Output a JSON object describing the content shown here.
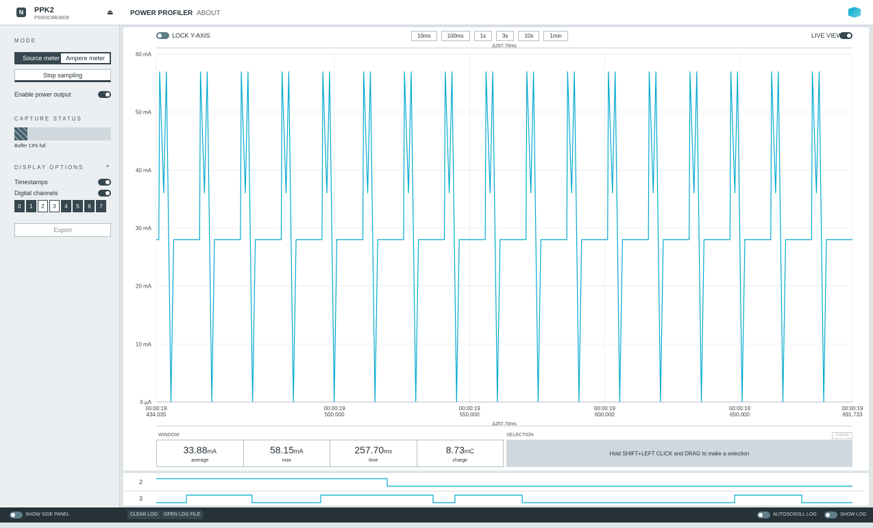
{
  "header": {
    "device": "PPK2",
    "serial": "F5583CBB38DE",
    "nav": [
      "POWER PROFILER",
      "ABOUT"
    ]
  },
  "sidebar": {
    "mode_title": "MODE",
    "mode_buttons": [
      "Source meter",
      "Ampere meter"
    ],
    "stop": "Stop sampling",
    "power_output": "Enable power output",
    "capture_title": "CAPTURE STATUS",
    "buffer": "Buffer 13% full",
    "display_title": "DISPLAY OPTIONS",
    "timestamps": "Timestamps",
    "digital_channels": "Digital channels",
    "channels": [
      {
        "label": "0",
        "on": false
      },
      {
        "label": "1",
        "on": false
      },
      {
        "label": "2",
        "on": true
      },
      {
        "label": "3",
        "on": true
      },
      {
        "label": "4",
        "on": false
      },
      {
        "label": "5",
        "on": false
      },
      {
        "label": "6",
        "on": false
      },
      {
        "label": "7",
        "on": false
      }
    ],
    "export": "Export",
    "show_side_panel": "SHOW SIDE PANEL"
  },
  "toolbar": {
    "lock": "LOCK Y-AXIS",
    "windows": [
      "10ms",
      "100ms",
      "1s",
      "3s",
      "10s",
      "1min"
    ],
    "live": "LIVE VIEW",
    "delta": "Δ257.70ms"
  },
  "chart_data": {
    "type": "line",
    "color": "#00a9ce",
    "grid": true,
    "xlim": [
      434.035,
      691.733
    ],
    "ylim": [
      0,
      60
    ],
    "xticks": [
      {
        "value": 434.035,
        "label": "434.035",
        "time": "00:00:19"
      },
      {
        "value": 500,
        "label": "500.000",
        "time": "00:00:19"
      },
      {
        "value": 550,
        "label": "550.000",
        "time": "00:00:19"
      },
      {
        "value": 600,
        "label": "600.000",
        "time": "00:00:19"
      },
      {
        "value": 650,
        "label": "650.000",
        "time": "00:00:19"
      },
      {
        "value": 691.733,
        "label": "691.733",
        "time": "00:00:19"
      }
    ],
    "yticks": [
      {
        "value": 0,
        "label": "0 µA"
      },
      {
        "value": 10,
        "label": "10 mA"
      },
      {
        "value": 20,
        "label": "20 mA"
      },
      {
        "value": 30,
        "label": "30 mA"
      },
      {
        "value": 40,
        "label": "40 mA"
      },
      {
        "value": 50,
        "label": "50 mA"
      },
      {
        "value": 60,
        "label": "60 mA"
      }
    ],
    "x": [
      434.035,
      435.0,
      435.3,
      436.8,
      437.8,
      439.5,
      440.5,
      450.1,
      450.4,
      451.9,
      452.9,
      454.6,
      455.6,
      465.2,
      465.5,
      467.0,
      468.0,
      469.7,
      470.7,
      480.3,
      480.6,
      482.1,
      483.1,
      484.8,
      485.8,
      495.4,
      495.7,
      497.2,
      498.2,
      499.9,
      500.9,
      510.5,
      510.8,
      512.3,
      513.3,
      515.0,
      516.0,
      525.6,
      525.9,
      527.4,
      528.4,
      530.1,
      531.1,
      540.7,
      541.0,
      542.5,
      543.5,
      545.2,
      546.2,
      555.8,
      556.1,
      557.6,
      558.6,
      560.3,
      561.3,
      570.9,
      571.2,
      572.7,
      573.7,
      575.4,
      576.4,
      586.0,
      586.3,
      587.8,
      588.8,
      590.5,
      591.5,
      601.1,
      601.4,
      602.9,
      603.9,
      605.6,
      606.6,
      616.2,
      616.5,
      618.0,
      619.0,
      620.7,
      621.7,
      631.3,
      631.6,
      633.1,
      634.1,
      635.8,
      636.8,
      646.4,
      646.7,
      648.2,
      649.2,
      650.9,
      651.9,
      661.5,
      661.8,
      663.3,
      664.3,
      666.0,
      667.0,
      676.6,
      676.9,
      678.4,
      679.4,
      681.1,
      682.1,
      691.733
    ],
    "values": [
      28,
      28,
      57,
      36,
      57,
      0,
      28,
      28,
      57,
      36,
      57,
      0,
      28,
      28,
      57,
      36,
      57,
      0,
      28,
      28,
      57,
      36,
      57,
      0,
      28,
      28,
      57,
      36,
      57,
      0,
      28,
      28,
      57,
      36,
      57,
      0,
      28,
      28,
      57,
      36,
      57,
      0,
      28,
      28,
      57,
      36,
      57,
      0,
      28,
      28,
      57,
      36,
      57,
      0,
      28,
      28,
      57,
      36,
      57,
      0,
      28,
      28,
      57,
      36,
      57,
      0,
      28,
      28,
      57,
      36,
      57,
      0,
      28,
      28,
      57,
      36,
      57,
      0,
      28,
      28,
      57,
      36,
      57,
      0,
      28,
      28,
      57,
      36,
      57,
      0,
      28,
      28,
      57,
      36,
      57,
      0,
      28,
      28,
      57,
      36,
      57,
      0,
      28,
      28
    ]
  },
  "stats": {
    "window_title": "WINDOW",
    "items": [
      {
        "value": "33.88",
        "unit": "mA",
        "label": "average"
      },
      {
        "value": "58.15",
        "unit": "mA",
        "label": "max"
      },
      {
        "value": "257.70",
        "unit": "ms",
        "label": "time"
      },
      {
        "value": "8.73",
        "unit": "mC",
        "label": "charge"
      }
    ],
    "selection_title": "SELECTION",
    "clear": "CLEAR",
    "hint": "Hold SHIFT+LEFT CLICK and DRAG to make a selection"
  },
  "digital": [
    {
      "label": "2",
      "x": [
        434.035,
        519.5,
        691.733
      ],
      "values": [
        1,
        0,
        0
      ]
    },
    {
      "label": "3",
      "x": [
        434.035,
        445.2,
        469.5,
        494.9,
        536.5,
        544.6,
        569.5,
        648.1,
        673.0,
        691.733
      ],
      "values": [
        0,
        1,
        0,
        1,
        0,
        1,
        0,
        1,
        0,
        0
      ]
    }
  ],
  "footer": {
    "clear_log": "CLEAR LOG",
    "open_log": "OPEN LOG FILE",
    "autoscroll": "AUTOSCROLL LOG",
    "show_log": "SHOW LOG"
  }
}
